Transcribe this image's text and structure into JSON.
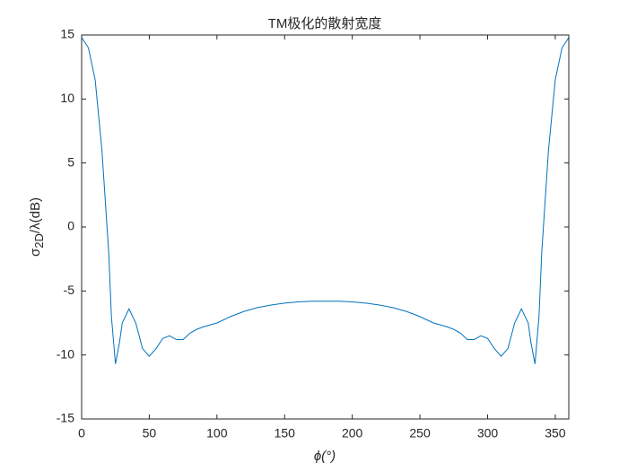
{
  "chart_data": {
    "type": "line",
    "title": "TM极化的散射宽度",
    "xlabel": "ϕ(°)",
    "ylabel": {
      "symbol": "σ",
      "subscript": "2D",
      "rest": "/λ(dB)"
    },
    "x": [
      0,
      5,
      10,
      15,
      20,
      22,
      25,
      28,
      30,
      35,
      40,
      45,
      50,
      55,
      60,
      65,
      70,
      75,
      80,
      85,
      90,
      100,
      110,
      120,
      130,
      140,
      150,
      160,
      170,
      180,
      190,
      200,
      210,
      220,
      230,
      240,
      250,
      260,
      270,
      275,
      280,
      285,
      290,
      295,
      300,
      305,
      310,
      315,
      320,
      325,
      330,
      332,
      335,
      338,
      340,
      345,
      350,
      355,
      360
    ],
    "series": [
      {
        "color": "#0072bd",
        "values": [
          14.8,
          14,
          11.5,
          6,
          -2,
          -7,
          -10.7,
          -9,
          -7.5,
          -6.4,
          -7.5,
          -9.5,
          -10.1,
          -9.5,
          -8.7,
          -8.5,
          -8.8,
          -8.8,
          -8.3,
          -8,
          -7.8,
          -7.5,
          -7,
          -6.6,
          -6.3,
          -6.1,
          -5.95,
          -5.85,
          -5.8,
          -5.8,
          -5.8,
          -5.85,
          -5.95,
          -6.1,
          -6.3,
          -6.6,
          -7,
          -7.5,
          -7.8,
          -8,
          -8.3,
          -8.8,
          -8.8,
          -8.5,
          -8.7,
          -9.5,
          -10.1,
          -9.5,
          -7.5,
          -6.4,
          -7.5,
          -9,
          -10.7,
          -7,
          -2,
          6,
          11.5,
          14,
          14.8
        ]
      }
    ],
    "xlim": [
      0,
      360
    ],
    "xticks": [
      0,
      50,
      100,
      150,
      200,
      250,
      300,
      350
    ],
    "ylim": [
      -15,
      15
    ],
    "yticks": [
      -15,
      -10,
      -5,
      0,
      5,
      10,
      15
    ]
  }
}
